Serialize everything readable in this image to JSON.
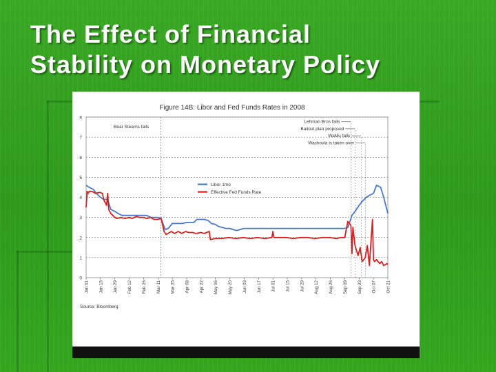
{
  "slide": {
    "title_line1": "The Effect of Financial",
    "title_line2": "Stability on Monetary Policy"
  },
  "chart_data": {
    "type": "line",
    "title": "Figure 14B: Libor and Fed Funds Rates in 2008",
    "source": "Source: Bloomberg",
    "xlabel": "",
    "ylabel": "",
    "ylim": [
      0,
      8
    ],
    "y_ticks": [
      "0",
      "1",
      "2",
      "3",
      "4",
      "5",
      "6",
      "7",
      "8"
    ],
    "x_ticks": [
      "Jan 01",
      "Jan 15",
      "Jan 29",
      "Feb 12",
      "Feb 26",
      "Mar 11",
      "Mar 25",
      "Apr 08",
      "Apr 22",
      "May 06",
      "May 20",
      "Jun 03",
      "Jun 17",
      "Jul 01",
      "Jul 15",
      "Jul 29",
      "Aug 12",
      "Aug 26",
      "Sep 09",
      "Sep 23",
      "Oct 07",
      "Oct 21"
    ],
    "grid": "horizontal dashed",
    "legend_placement": "middle-left",
    "series": [
      {
        "name": "Libor 1mo",
        "color": "#4a78c8",
        "x": [
          "Jan 01",
          "Jan 04",
          "Jan 08",
          "Jan 11",
          "Jan 15",
          "Jan 18",
          "Jan 22",
          "Jan 25",
          "Jan 29",
          "Feb 01",
          "Feb 05",
          "Feb 08",
          "Feb 12",
          "Feb 15",
          "Feb 19",
          "Feb 22",
          "Feb 26",
          "Feb 29",
          "Mar 04",
          "Mar 07",
          "Mar 11",
          "Mar 14",
          "Mar 18",
          "Mar 21",
          "Mar 25",
          "Mar 28",
          "Apr 01",
          "Apr 04",
          "Apr 08",
          "Apr 11",
          "Apr 15",
          "Apr 18",
          "Apr 22",
          "Apr 25",
          "Apr 29",
          "May 02",
          "May 06",
          "May 09",
          "May 13",
          "May 16",
          "May 20",
          "May 23",
          "May 27",
          "May 30",
          "Jun 03",
          "Jun 10",
          "Jun 17",
          "Jun 24",
          "Jul 01",
          "Jul 08",
          "Jul 15",
          "Jul 22",
          "Jul 29",
          "Aug 05",
          "Aug 12",
          "Aug 19",
          "Aug 26",
          "Sep 02",
          "Sep 09",
          "Sep 12",
          "Sep 16",
          "Sep 19",
          "Sep 23",
          "Sep 26",
          "Sep 30",
          "Oct 03",
          "Oct 07",
          "Oct 10",
          "Oct 14",
          "Oct 17",
          "Oct 21"
        ],
        "values": [
          4.6,
          4.5,
          4.4,
          4.2,
          4.0,
          3.9,
          3.9,
          3.4,
          3.3,
          3.2,
          3.1,
          3.1,
          3.1,
          3.1,
          3.1,
          3.1,
          3.1,
          3.1,
          3.0,
          3.0,
          3.0,
          2.95,
          2.4,
          2.45,
          2.7,
          2.7,
          2.7,
          2.7,
          2.75,
          2.75,
          2.75,
          2.9,
          2.9,
          2.9,
          2.85,
          2.7,
          2.65,
          2.55,
          2.5,
          2.45,
          2.45,
          2.4,
          2.35,
          2.4,
          2.45,
          2.45,
          2.45,
          2.45,
          2.45,
          2.45,
          2.45,
          2.45,
          2.45,
          2.45,
          2.45,
          2.45,
          2.45,
          2.45,
          2.45,
          2.5,
          3.1,
          3.3,
          3.6,
          3.8,
          4.0,
          4.1,
          4.2,
          4.6,
          4.5,
          4.0,
          3.2
        ]
      },
      {
        "name": "Effective Fed Funds Rate",
        "color": "#d82020",
        "x": [
          "Jan 01",
          "Jan 02",
          "Jan 03",
          "Jan 04",
          "Jan 07",
          "Jan 10",
          "Jan 14",
          "Jan 17",
          "Jan 18",
          "Jan 21",
          "Jan 22",
          "Jan 23",
          "Jan 25",
          "Jan 29",
          "Jan 31",
          "Feb 04",
          "Feb 08",
          "Feb 12",
          "Feb 15",
          "Feb 19",
          "Feb 22",
          "Feb 26",
          "Feb 29",
          "Mar 04",
          "Mar 07",
          "Mar 11",
          "Mar 14",
          "Mar 17",
          "Mar 19",
          "Mar 24",
          "Mar 27",
          "Mar 31",
          "Apr 03",
          "Apr 07",
          "Apr 10",
          "Apr 14",
          "Apr 17",
          "Apr 22",
          "Apr 25",
          "Apr 30",
          "May 01",
          "May 06",
          "May 12",
          "May 19",
          "May 26",
          "Jun 02",
          "Jun 09",
          "Jun 16",
          "Jun 23",
          "Jun 30",
          "Jul 01",
          "Jul 02",
          "Jul 07",
          "Jul 14",
          "Jul 21",
          "Jul 28",
          "Aug 04",
          "Aug 11",
          "Aug 18",
          "Aug 25",
          "Sep 01",
          "Sep 05",
          "Sep 09",
          "Sep 12",
          "Sep 15",
          "Sep 16",
          "Sep 17",
          "Sep 19",
          "Sep 22",
          "Sep 24",
          "Sep 26",
          "Sep 29",
          "Oct 01",
          "Oct 03",
          "Oct 06",
          "Oct 07",
          "Oct 08",
          "Oct 10",
          "Oct 13",
          "Oct 15",
          "Oct 17",
          "Oct 20",
          "Oct 21"
        ],
        "values": [
          3.5,
          4.3,
          4.2,
          4.3,
          4.3,
          4.2,
          4.25,
          4.2,
          3.9,
          3.6,
          4.2,
          3.4,
          3.2,
          3.0,
          2.95,
          3.0,
          2.95,
          3.0,
          2.95,
          3.05,
          3.0,
          3.0,
          2.95,
          3.0,
          2.9,
          2.9,
          2.95,
          2.3,
          2.15,
          2.3,
          2.2,
          2.3,
          2.2,
          2.3,
          2.25,
          2.25,
          2.2,
          2.25,
          2.2,
          2.3,
          1.9,
          1.95,
          1.95,
          2.0,
          1.95,
          2.0,
          1.95,
          2.0,
          1.95,
          2.0,
          2.3,
          2.0,
          2.0,
          2.0,
          1.95,
          2.0,
          2.0,
          1.95,
          2.0,
          2.0,
          1.95,
          2.0,
          2.0,
          2.8,
          2.6,
          1.2,
          2.5,
          1.6,
          1.1,
          1.5,
          0.8,
          1.0,
          1.6,
          0.6,
          2.9,
          0.9,
          0.8,
          0.9,
          0.7,
          0.8,
          0.6,
          0.7,
          0.65
        ]
      }
    ],
    "annotations": [
      {
        "text": "Bear Stearns falls",
        "at": "Mar 14"
      },
      {
        "text": "Lehman Bros falls",
        "at": "Sep 15"
      },
      {
        "text": "Bailout plan proposed",
        "at": "Sep 19"
      },
      {
        "text": "WaMu falls",
        "at": "Sep 25"
      },
      {
        "text": "Wachovia is taken over",
        "at": "Sep 29"
      }
    ]
  }
}
